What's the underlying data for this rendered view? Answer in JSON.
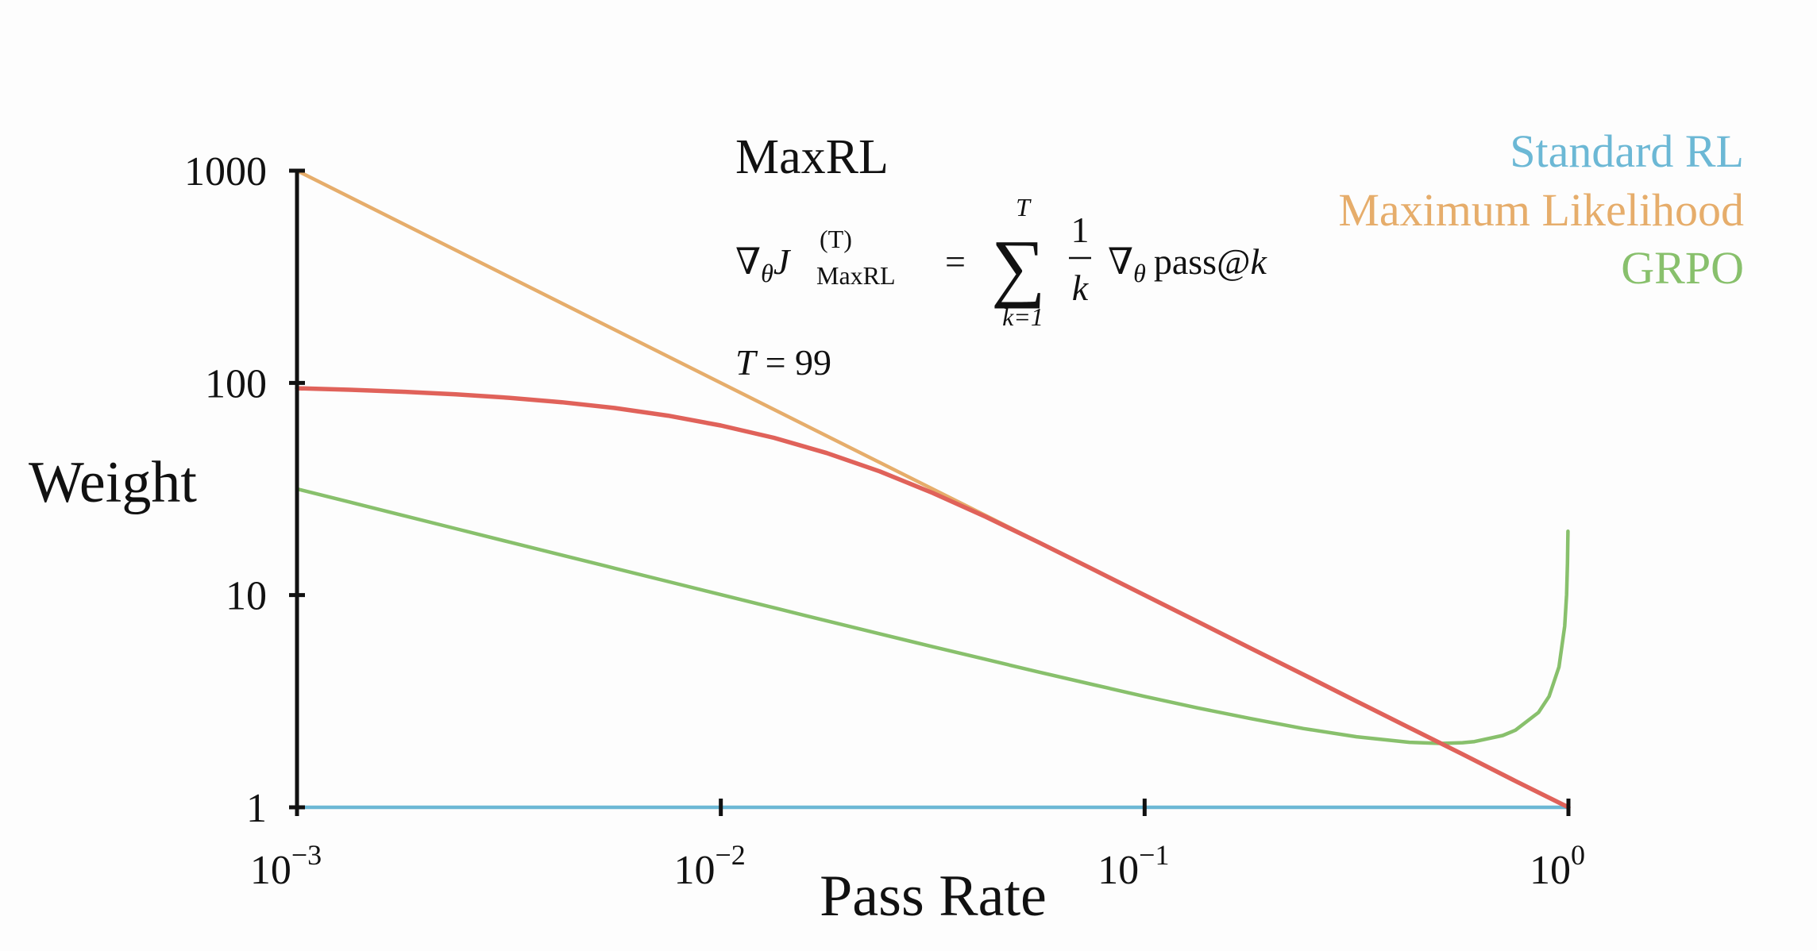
{
  "chart_data": {
    "type": "line",
    "title": "MaxRL",
    "xlabel": "Pass Rate",
    "ylabel": "Weight",
    "xscale": "log",
    "yscale": "log",
    "xlim": [
      0.001,
      1
    ],
    "ylim": [
      1,
      1000
    ],
    "grid": false,
    "legend_placement": "top-right",
    "x_ticks": [
      {
        "value": 0.001,
        "base": "10",
        "exp": "−3"
      },
      {
        "value": 0.01,
        "base": "10",
        "exp": "−2"
      },
      {
        "value": 0.1,
        "base": "10",
        "exp": "−1"
      },
      {
        "value": 1,
        "base": "10",
        "exp": "0"
      }
    ],
    "y_ticks": [
      {
        "value": 1000,
        "label": "1000"
      },
      {
        "value": 100,
        "label": "100"
      },
      {
        "value": 10,
        "label": "10"
      },
      {
        "value": 1,
        "label": "1"
      }
    ],
    "series": [
      {
        "name": "Standard RL",
        "color": "#6cb8d5",
        "x": [
          0.001,
          1
        ],
        "y": [
          1,
          1
        ]
      },
      {
        "name": "Maximum Likelihood",
        "color": "#e6ad6b",
        "x": [
          0.001,
          1
        ],
        "y": [
          1000,
          1
        ]
      },
      {
        "name": "MaxRL",
        "color": "#e0625a",
        "in_legend": false,
        "x": [
          0.001,
          0.001334,
          0.001778,
          0.002371,
          0.003162,
          0.004217,
          0.005623,
          0.007499,
          0.01,
          0.01334,
          0.01778,
          0.02371,
          0.03162,
          0.04217,
          0.05623,
          0.07499,
          0.1,
          0.1334,
          0.1778,
          0.2371,
          0.3162,
          0.4217,
          0.5623,
          0.7499,
          1
        ],
        "y": [
          94.3,
          92.8,
          90.8,
          88.3,
          85.1,
          81.1,
          76.1,
          70.1,
          63.0,
          55.1,
          46.7,
          38.3,
          30.3,
          23.4,
          17.73,
          13.33,
          10,
          7.5,
          5.62,
          4.22,
          3.16,
          2.37,
          1.78,
          1.33,
          1
        ]
      },
      {
        "name": "GRPO",
        "color": "#88c06c",
        "x": [
          0.001,
          0.001334,
          0.001778,
          0.002371,
          0.003162,
          0.004217,
          0.005623,
          0.007499,
          0.01,
          0.01334,
          0.01778,
          0.02371,
          0.03162,
          0.04217,
          0.05623,
          0.07499,
          0.1,
          0.1334,
          0.1778,
          0.2371,
          0.3162,
          0.4217,
          0.5,
          0.5623,
          0.6,
          0.7,
          0.75,
          0.85,
          0.9,
          0.95,
          0.98,
          0.99,
          0.995,
          0.9975
        ],
        "y": [
          31.64,
          27.4,
          23.74,
          20.56,
          17.81,
          15.43,
          13.37,
          11.59,
          10.05,
          8.72,
          7.56,
          6.57,
          5.71,
          4.98,
          4.34,
          3.8,
          3.33,
          2.94,
          2.62,
          2.35,
          2.15,
          2.025,
          2.0,
          2.016,
          2.04,
          2.18,
          2.31,
          2.8,
          3.33,
          4.59,
          7.14,
          10.05,
          14.18,
          20.0
        ]
      }
    ],
    "annotations": {
      "formula": {
        "nabla": "∇",
        "theta": "θ",
        "J": "J",
        "sup": "(T)",
        "sub": "MaxRL",
        "eq": "=",
        "sum": "∑",
        "sum_top": "T",
        "sum_bottom": "k=1",
        "frac_num": "1",
        "frac_den": "k",
        "pass": "pass@",
        "k": "k"
      },
      "t_label": "T",
      "t_eq": "= 99"
    }
  }
}
